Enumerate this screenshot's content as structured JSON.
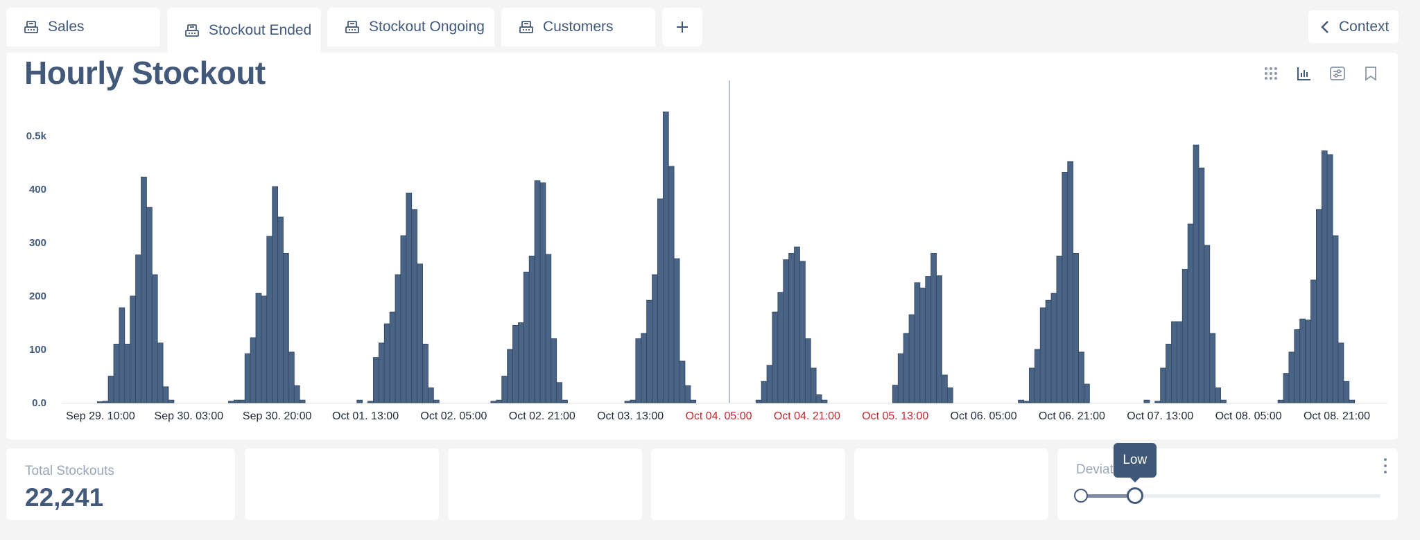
{
  "tabs": [
    {
      "label": "Sales",
      "icon": "cash-register-icon",
      "active": false
    },
    {
      "label": "Stockout Ended",
      "icon": "cash-register-icon",
      "active": true
    },
    {
      "label": "Stockout Ongoing",
      "icon": "cash-register-icon",
      "active": false
    },
    {
      "label": "Customers",
      "icon": "cash-register-icon",
      "active": false
    }
  ],
  "add_tab_icon": "plus-icon",
  "context_button": {
    "label": "Context",
    "icon": "chevron-left-icon"
  },
  "panel": {
    "title": "Hourly Stockout",
    "tools": [
      "grid-icon",
      "bar-chart-icon",
      "filter-settings-icon",
      "bookmark-icon"
    ]
  },
  "chart_data": {
    "type": "bar",
    "title": "Hourly Stockout",
    "y_ticks": [
      "0.0",
      "100",
      "200",
      "300",
      "400",
      "0.5k"
    ],
    "ylim": [
      0,
      560
    ],
    "x_ticks": [
      {
        "label": "Sep 29. 10:00",
        "highlight": false
      },
      {
        "label": "Sep 30. 03:00",
        "highlight": false
      },
      {
        "label": "Sep 30. 20:00",
        "highlight": false
      },
      {
        "label": "Oct 01. 13:00",
        "highlight": false
      },
      {
        "label": "Oct 02. 05:00",
        "highlight": false
      },
      {
        "label": "Oct 02. 21:00",
        "highlight": false
      },
      {
        "label": "Oct 03. 13:00",
        "highlight": false
      },
      {
        "label": "Oct 04. 05:00",
        "highlight": true
      },
      {
        "label": "Oct 04. 21:00",
        "highlight": true
      },
      {
        "label": "Oct 05. 13:00",
        "highlight": true
      },
      {
        "label": "Oct 06. 05:00",
        "highlight": false
      },
      {
        "label": "Oct 06. 21:00",
        "highlight": false
      },
      {
        "label": "Oct 07. 13:00",
        "highlight": false
      },
      {
        "label": "Oct 08. 05:00",
        "highlight": false
      },
      {
        "label": "Oct 08. 21:00",
        "highlight": false
      }
    ],
    "grid": false,
    "bar_color": "#4a6486",
    "highlight_label_color": "#c0262d",
    "divider_after_cluster": 5,
    "clusters": [
      [
        2,
        3,
        50,
        110,
        178,
        110,
        200,
        277,
        423,
        366,
        240,
        112,
        30,
        5
      ],
      [
        3,
        5,
        5,
        92,
        122,
        205,
        200,
        312,
        405,
        348,
        280,
        95,
        32,
        5
      ],
      [
        5,
        0,
        3,
        85,
        112,
        148,
        170,
        240,
        313,
        393,
        362,
        260,
        110,
        28,
        5
      ],
      [
        3,
        5,
        50,
        100,
        145,
        150,
        245,
        275,
        416,
        412,
        278,
        120,
        38,
        5
      ],
      [
        3,
        5,
        120,
        130,
        192,
        240,
        382,
        545,
        443,
        270,
        78,
        32,
        5
      ],
      [
        5,
        40,
        70,
        170,
        207,
        268,
        280,
        292,
        265,
        120,
        65,
        15,
        5
      ],
      [
        33,
        92,
        130,
        165,
        225,
        215,
        237,
        280,
        238,
        52,
        28
      ],
      [
        5,
        3,
        65,
        100,
        178,
        192,
        205,
        275,
        432,
        452,
        280,
        95,
        35
      ],
      [
        5,
        0,
        3,
        65,
        110,
        152,
        152,
        250,
        335,
        483,
        440,
        295,
        130,
        28,
        5
      ],
      [
        5,
        55,
        95,
        137,
        157,
        155,
        230,
        362,
        472,
        465,
        313,
        112,
        40,
        5
      ]
    ]
  },
  "cards": {
    "kpi": {
      "label": "Total Stockouts",
      "value": "22,241"
    },
    "deviation": {
      "label": "Deviation",
      "tooltip": "Low",
      "level": 0.18,
      "menu_icon": "kebab-menu-icon"
    }
  }
}
